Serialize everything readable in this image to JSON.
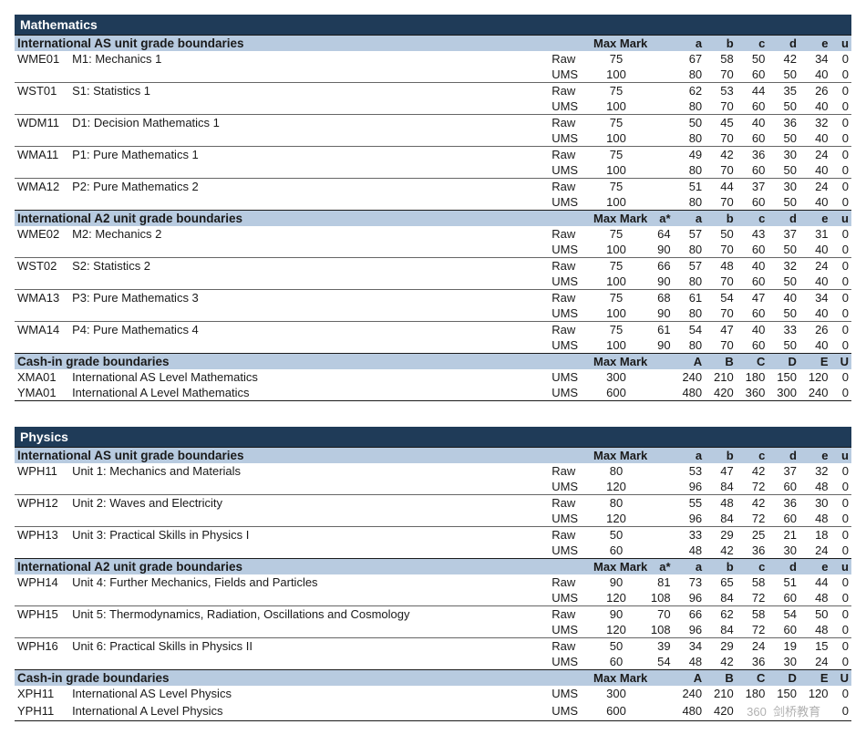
{
  "colors": {
    "subject_bg": "#1f3b58",
    "subject_fg": "#ffffff",
    "header_bg": "#b8cbe0",
    "text": "#1a1a1a"
  },
  "labels": {
    "max_mark": "Max Mark",
    "raw": "Raw",
    "ums": "UMS",
    "as_header": "International AS unit grade boundaries",
    "a2_header": "International A2 unit grade boundaries",
    "cashin_header": "Cash-in grade boundaries"
  },
  "grades_lower": {
    "astar": "a*",
    "a": "a",
    "b": "b",
    "c": "c",
    "d": "d",
    "e": "e",
    "u": "u"
  },
  "grades_upper": {
    "a": "A",
    "b": "B",
    "c": "C",
    "d": "D",
    "e": "E",
    "u": "U"
  },
  "subjects": [
    {
      "name": "Mathematics",
      "as_units": [
        {
          "code": "WME01",
          "name": "M1: Mechanics 1",
          "raw": {
            "max": "75",
            "a": "67",
            "b": "58",
            "c": "50",
            "d": "42",
            "e": "34",
            "u": "0"
          },
          "ums": {
            "max": "100",
            "a": "80",
            "b": "70",
            "c": "60",
            "d": "50",
            "e": "40",
            "u": "0"
          }
        },
        {
          "code": "WST01",
          "name": "S1: Statistics 1",
          "raw": {
            "max": "75",
            "a": "62",
            "b": "53",
            "c": "44",
            "d": "35",
            "e": "26",
            "u": "0"
          },
          "ums": {
            "max": "100",
            "a": "80",
            "b": "70",
            "c": "60",
            "d": "50",
            "e": "40",
            "u": "0"
          }
        },
        {
          "code": "WDM11",
          "name": "D1: Decision Mathematics 1",
          "raw": {
            "max": "75",
            "a": "50",
            "b": "45",
            "c": "40",
            "d": "36",
            "e": "32",
            "u": "0"
          },
          "ums": {
            "max": "100",
            "a": "80",
            "b": "70",
            "c": "60",
            "d": "50",
            "e": "40",
            "u": "0"
          }
        },
        {
          "code": "WMA11",
          "name": "P1: Pure Mathematics 1",
          "raw": {
            "max": "75",
            "a": "49",
            "b": "42",
            "c": "36",
            "d": "30",
            "e": "24",
            "u": "0"
          },
          "ums": {
            "max": "100",
            "a": "80",
            "b": "70",
            "c": "60",
            "d": "50",
            "e": "40",
            "u": "0"
          }
        },
        {
          "code": "WMA12",
          "name": "P2: Pure Mathematics 2",
          "raw": {
            "max": "75",
            "a": "51",
            "b": "44",
            "c": "37",
            "d": "30",
            "e": "24",
            "u": "0"
          },
          "ums": {
            "max": "100",
            "a": "80",
            "b": "70",
            "c": "60",
            "d": "50",
            "e": "40",
            "u": "0"
          }
        }
      ],
      "a2_units": [
        {
          "code": "WME02",
          "name": "M2: Mechanics 2",
          "raw": {
            "max": "75",
            "astar": "64",
            "a": "57",
            "b": "50",
            "c": "43",
            "d": "37",
            "e": "31",
            "u": "0"
          },
          "ums": {
            "max": "100",
            "astar": "90",
            "a": "80",
            "b": "70",
            "c": "60",
            "d": "50",
            "e": "40",
            "u": "0"
          }
        },
        {
          "code": "WST02",
          "name": "S2: Statistics 2",
          "raw": {
            "max": "75",
            "astar": "66",
            "a": "57",
            "b": "48",
            "c": "40",
            "d": "32",
            "e": "24",
            "u": "0"
          },
          "ums": {
            "max": "100",
            "astar": "90",
            "a": "80",
            "b": "70",
            "c": "60",
            "d": "50",
            "e": "40",
            "u": "0"
          }
        },
        {
          "code": "WMA13",
          "name": "P3: Pure Mathematics 3",
          "raw": {
            "max": "75",
            "astar": "68",
            "a": "61",
            "b": "54",
            "c": "47",
            "d": "40",
            "e": "34",
            "u": "0"
          },
          "ums": {
            "max": "100",
            "astar": "90",
            "a": "80",
            "b": "70",
            "c": "60",
            "d": "50",
            "e": "40",
            "u": "0"
          }
        },
        {
          "code": "WMA14",
          "name": "P4: Pure Mathematics 4",
          "raw": {
            "max": "75",
            "astar": "61",
            "a": "54",
            "b": "47",
            "c": "40",
            "d": "33",
            "e": "26",
            "u": "0"
          },
          "ums": {
            "max": "100",
            "astar": "90",
            "a": "80",
            "b": "70",
            "c": "60",
            "d": "50",
            "e": "40",
            "u": "0"
          }
        }
      ],
      "cashin": [
        {
          "code": "XMA01",
          "name": "International AS Level Mathematics",
          "type": "UMS",
          "max": "300",
          "a": "240",
          "b": "210",
          "c": "180",
          "d": "150",
          "e": "120",
          "u": "0"
        },
        {
          "code": "YMA01",
          "name": "International A Level Mathematics",
          "type": "UMS",
          "max": "600",
          "a": "480",
          "b": "420",
          "c": "360",
          "d": "300",
          "e": "240",
          "u": "0"
        }
      ]
    },
    {
      "name": "Physics",
      "as_units": [
        {
          "code": "WPH11",
          "name": "Unit 1: Mechanics and Materials",
          "raw": {
            "max": "80",
            "a": "53",
            "b": "47",
            "c": "42",
            "d": "37",
            "e": "32",
            "u": "0"
          },
          "ums": {
            "max": "120",
            "a": "96",
            "b": "84",
            "c": "72",
            "d": "60",
            "e": "48",
            "u": "0"
          }
        },
        {
          "code": "WPH12",
          "name": "Unit 2: Waves and Electricity",
          "raw": {
            "max": "80",
            "a": "55",
            "b": "48",
            "c": "42",
            "d": "36",
            "e": "30",
            "u": "0"
          },
          "ums": {
            "max": "120",
            "a": "96",
            "b": "84",
            "c": "72",
            "d": "60",
            "e": "48",
            "u": "0"
          }
        },
        {
          "code": "WPH13",
          "name": "Unit 3: Practical Skills in Physics I",
          "raw": {
            "max": "50",
            "a": "33",
            "b": "29",
            "c": "25",
            "d": "21",
            "e": "18",
            "u": "0"
          },
          "ums": {
            "max": "60",
            "a": "48",
            "b": "42",
            "c": "36",
            "d": "30",
            "e": "24",
            "u": "0"
          }
        }
      ],
      "a2_units": [
        {
          "code": "WPH14",
          "name": "Unit 4: Further Mechanics, Fields and Particles",
          "raw": {
            "max": "90",
            "astar": "81",
            "a": "73",
            "b": "65",
            "c": "58",
            "d": "51",
            "e": "44",
            "u": "0"
          },
          "ums": {
            "max": "120",
            "astar": "108",
            "a": "96",
            "b": "84",
            "c": "72",
            "d": "60",
            "e": "48",
            "u": "0"
          }
        },
        {
          "code": "WPH15",
          "name": "Unit 5: Thermodynamics, Radiation, Oscillations and Cosmology",
          "raw": {
            "max": "90",
            "astar": "70",
            "a": "66",
            "b": "62",
            "c": "58",
            "d": "54",
            "e": "50",
            "u": "0"
          },
          "ums": {
            "max": "120",
            "astar": "108",
            "a": "96",
            "b": "84",
            "c": "72",
            "d": "60",
            "e": "48",
            "u": "0"
          }
        },
        {
          "code": "WPH16",
          "name": "Unit 6: Practical Skills in Physics II",
          "raw": {
            "max": "50",
            "astar": "39",
            "a": "34",
            "b": "29",
            "c": "24",
            "d": "19",
            "e": "15",
            "u": "0"
          },
          "ums": {
            "max": "60",
            "astar": "54",
            "a": "48",
            "b": "42",
            "c": "36",
            "d": "30",
            "e": "24",
            "u": "0"
          }
        }
      ],
      "cashin": [
        {
          "code": "XPH11",
          "name": "International AS Level Physics",
          "type": "UMS",
          "max": "300",
          "a": "240",
          "b": "210",
          "c": "180",
          "d": "150",
          "e": "120",
          "u": "0"
        },
        {
          "code": "YPH11",
          "name": "International A Level Physics",
          "type": "UMS",
          "max": "600",
          "a": "480",
          "b": "420",
          "c": "360",
          "d": "300",
          "e": "240",
          "u": "0"
        }
      ],
      "watermark": "剑桥教育"
    }
  ]
}
